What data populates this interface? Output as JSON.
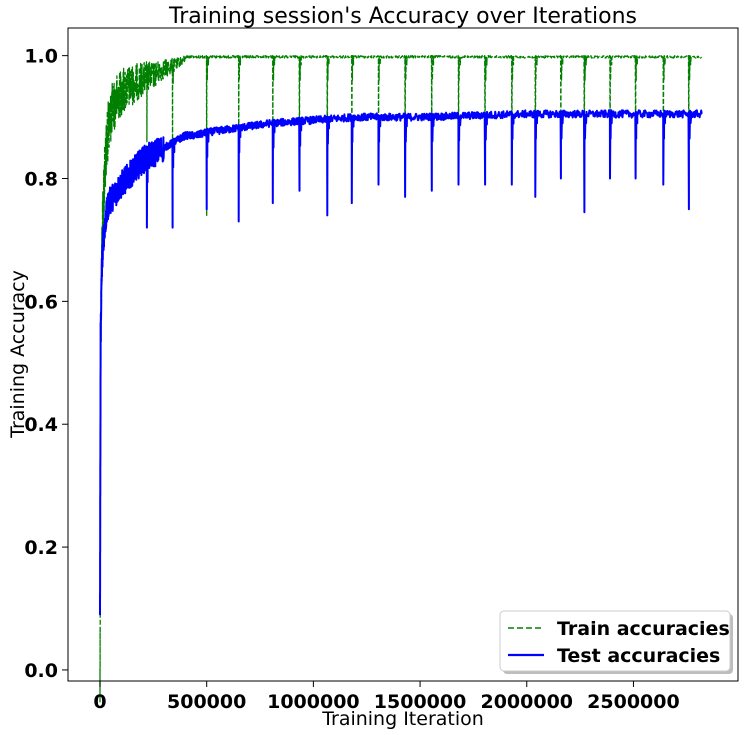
{
  "chart_data": {
    "type": "line",
    "title": "Training session's Accuracy over Iterations",
    "xlabel": "Training Iteration",
    "ylabel": "Training Accuracy",
    "xlim": [
      -150000,
      2990000
    ],
    "ylim": [
      -0.018,
      1.045
    ],
    "xticks": [
      0,
      500000,
      1000000,
      1500000,
      2000000,
      2500000
    ],
    "yticks": [
      0.0,
      0.2,
      0.4,
      0.6,
      0.8,
      1.0
    ],
    "xtick_labels": [
      "0",
      "500000",
      "1000000",
      "1500000",
      "2000000",
      "2500000"
    ],
    "ytick_labels": [
      "0.0",
      "0.2",
      "0.4",
      "0.6",
      "0.8",
      "1.0"
    ],
    "grid": false,
    "legend_position": "bottom-right",
    "colors": {
      "train": "#008000",
      "test": "#0000ff"
    },
    "series": [
      {
        "name": "Train accuracies",
        "style": "dashed",
        "color": "#008000",
        "x": [
          0,
          3000,
          8000,
          15000,
          25000,
          40000,
          60000,
          80000,
          100000,
          150000,
          200000,
          250000,
          300000,
          350000,
          400000,
          450000,
          500000,
          600000,
          800000,
          1000000,
          1500000,
          2000000,
          2500000,
          2820000
        ],
        "y": [
          0.03,
          0.55,
          0.72,
          0.8,
          0.88,
          0.93,
          0.96,
          0.97,
          0.98,
          0.985,
          0.99,
          0.99,
          0.995,
          0.995,
          1.0,
          1.0,
          1.0,
          1.0,
          1.0,
          1.0,
          1.0,
          1.0,
          1.0,
          1.0
        ]
      },
      {
        "name": "Test accuracies",
        "style": "solid",
        "color": "#0000ff",
        "x": [
          0,
          3000,
          8000,
          15000,
          25000,
          40000,
          60000,
          80000,
          100000,
          150000,
          200000,
          250000,
          300000,
          350000,
          400000,
          450000,
          500000,
          600000,
          800000,
          1000000,
          1200000,
          1500000,
          2000000,
          2500000,
          2820000
        ],
        "y": [
          0.1,
          0.55,
          0.65,
          0.7,
          0.73,
          0.76,
          0.77,
          0.78,
          0.79,
          0.81,
          0.83,
          0.84,
          0.85,
          0.86,
          0.87,
          0.87,
          0.875,
          0.88,
          0.89,
          0.895,
          0.9,
          0.9,
          0.905,
          0.905,
          0.905
        ]
      }
    ],
    "dips": {
      "x": [
        220000,
        340000,
        500000,
        650000,
        810000,
        935000,
        1065000,
        1180000,
        1305000,
        1430000,
        1555000,
        1680000,
        1805000,
        1930000,
        2040000,
        2160000,
        2270000,
        2390000,
        2510000,
        2640000,
        2760000
      ],
      "test_min": [
        0.72,
        0.72,
        0.75,
        0.73,
        0.76,
        0.78,
        0.74,
        0.76,
        0.79,
        0.77,
        0.78,
        0.79,
        0.79,
        0.79,
        0.77,
        0.8,
        0.745,
        0.8,
        0.8,
        0.79,
        0.75
      ],
      "train_min": [
        0.86,
        0.72,
        0.74,
        0.75,
        0.8,
        0.82,
        0.74,
        0.78,
        0.82,
        0.8,
        0.82,
        0.82,
        0.82,
        0.82,
        0.77,
        0.84,
        0.8,
        0.84,
        0.84,
        0.84,
        0.76
      ]
    }
  }
}
